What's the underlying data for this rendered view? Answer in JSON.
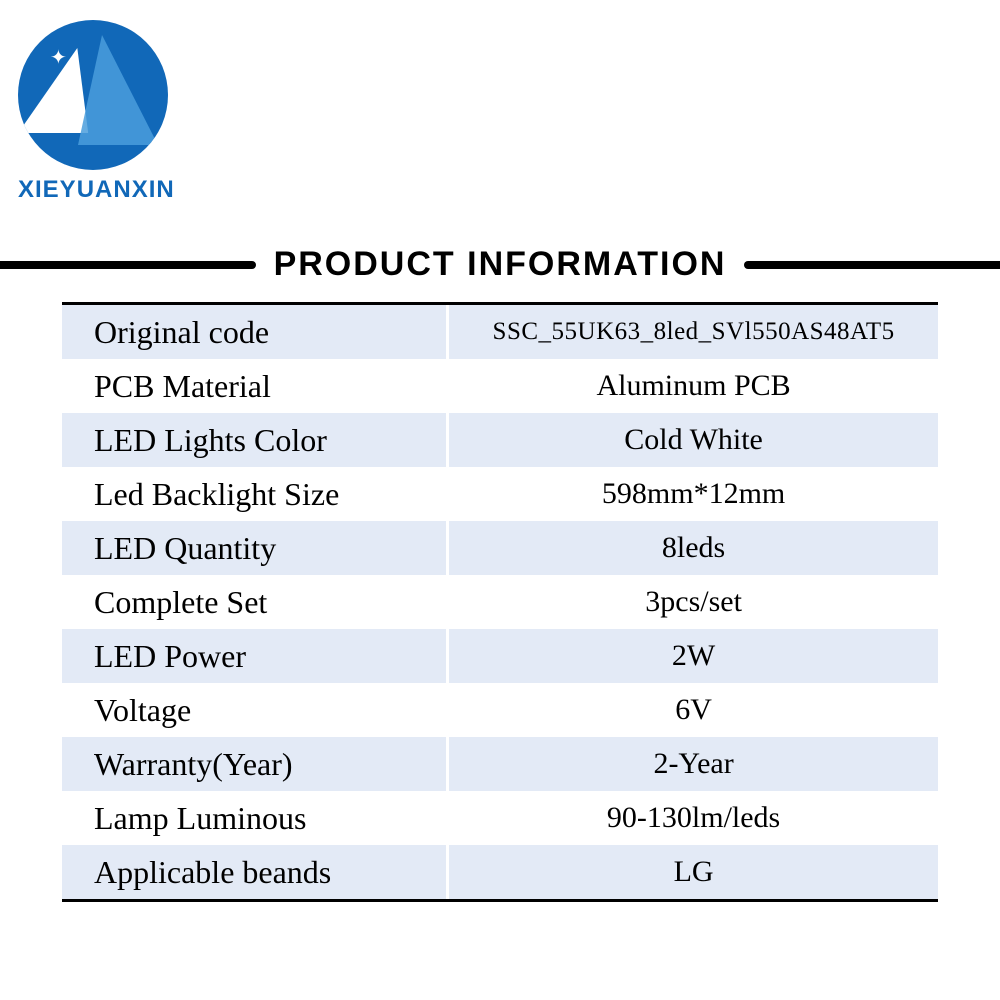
{
  "brand": {
    "name": "XIEYUANXIN",
    "logo_color": "#1168b8"
  },
  "section_title": "PRODUCT INFORMATION",
  "table": {
    "stripe_color": "#e3eaf6",
    "border_color": "#000000",
    "rows": [
      {
        "label": "Original code",
        "value": "SSC_55UK63_8led_SVl550AS48AT5",
        "small": true
      },
      {
        "label": "PCB Material",
        "value": "Aluminum PCB"
      },
      {
        "label": "LED Lights Color",
        "value": "Cold White"
      },
      {
        "label": "Led Backlight Size",
        "value": "598mm*12mm"
      },
      {
        "label": "LED Quantity",
        "value": "8leds"
      },
      {
        "label": "Complete Set",
        "value": "3pcs/set"
      },
      {
        "label": "LED Power",
        "value": "2W"
      },
      {
        "label": "Voltage",
        "value": "6V"
      },
      {
        "label": "Warranty(Year)",
        "value": "2-Year"
      },
      {
        "label": "Lamp Luminous",
        "value": "90-130lm/leds"
      },
      {
        "label": "Applicable beands",
        "value": "LG"
      }
    ]
  }
}
